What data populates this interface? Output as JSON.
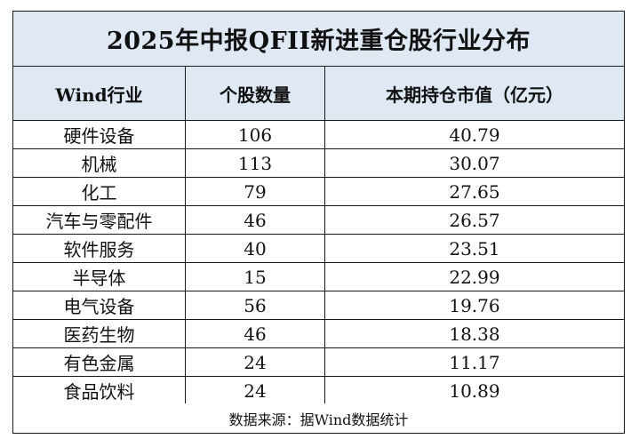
{
  "table": {
    "title": "2025年中报QFII新进重仓股行业分布",
    "headers": [
      "Wind行业",
      "个股数量",
      "本期持仓市值（亿元）"
    ],
    "rows": [
      [
        "硬件设备",
        "106",
        "40.79"
      ],
      [
        "机械",
        "113",
        "30.07"
      ],
      [
        "化工",
        "79",
        "27.65"
      ],
      [
        "汽车与零配件",
        "46",
        "26.57"
      ],
      [
        "软件服务",
        "40",
        "23.51"
      ],
      [
        "半导体",
        "15",
        "22.99"
      ],
      [
        "电气设备",
        "56",
        "19.76"
      ],
      [
        "医药生物",
        "46",
        "18.38"
      ],
      [
        "有色金属",
        "24",
        "11.17"
      ],
      [
        "食品饮料",
        "24",
        "10.89"
      ]
    ],
    "source": "数据来源：据Wind数据统计"
  }
}
